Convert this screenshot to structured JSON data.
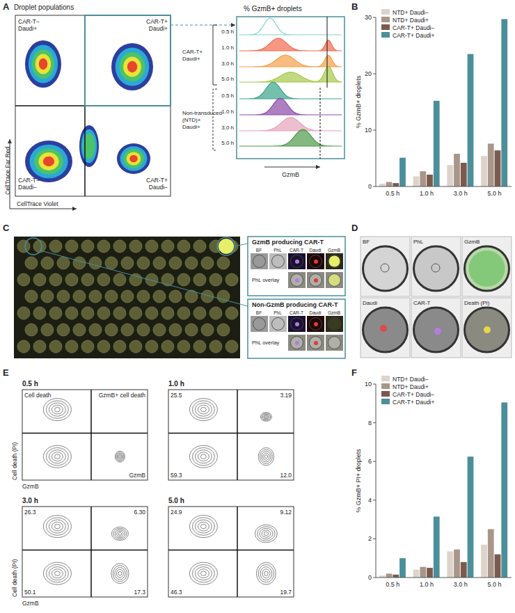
{
  "panel_labels": [
    "A",
    "B",
    "C",
    "D",
    "E",
    "F"
  ],
  "panel_a": {
    "title": "Droplet populations",
    "quadrants": [
      "CAR-T− Daudi+",
      "CAR-T+ Daudi+",
      "CAR-T− Daudi−",
      "CAR-T+ Daudi−"
    ],
    "x_label": "CellTrace Violet",
    "y_label": "CellTrace Far Red",
    "histogram_title": "% GzmB+ droplets",
    "histogram_x_label": "GzmB",
    "groups": [
      {
        "label_lines": [
          "CAR-T+",
          "Daudi+"
        ],
        "times": [
          "0.5 h",
          "1.0 h",
          "3.0 h",
          "5.0 h"
        ]
      },
      {
        "label_lines": [
          "Non-transduced",
          "(NTD)+",
          "Daudi+"
        ],
        "times": [
          "0.5 h",
          "1.0 h",
          "3.0 h",
          "5.0 h"
        ]
      }
    ]
  },
  "chart_data": [
    {
      "type": "bar",
      "y_label": "% GzmB+ droplets",
      "categories": [
        "0.5 h",
        "1.0 h",
        "3.0 h",
        "5.0 h"
      ],
      "series": [
        {
          "name": "NTD+ Daudi−",
          "color": "#ddd3cb",
          "values": [
            0.5,
            1.8,
            3.8,
            5.4
          ]
        },
        {
          "name": "NTD+ Daudi+",
          "color": "#a8968a",
          "values": [
            0.8,
            2.7,
            5.8,
            7.6
          ]
        },
        {
          "name": "CAR-T+ Daudi−",
          "color": "#7b5a4d",
          "values": [
            0.6,
            2.1,
            4.2,
            6.4
          ]
        },
        {
          "name": "CAR-T+ Daudi+",
          "color": "#4b8f9a",
          "values": [
            5.1,
            15.2,
            23.5,
            29.7
          ]
        }
      ],
      "ylim": [
        0,
        30
      ],
      "yticks": [
        0,
        10,
        20,
        30
      ],
      "legend": "top-left"
    },
    {
      "type": "bar",
      "y_label": "% GzmB+ PI+ droplets",
      "categories": [
        "0.5 h",
        "1.0 h",
        "3.0 h",
        "5.0 h"
      ],
      "series": [
        {
          "name": "NTD+ Daudi−",
          "color": "#ddd3cb",
          "values": [
            0.1,
            0.4,
            1.35,
            1.7
          ]
        },
        {
          "name": "NTD+ Daudi+",
          "color": "#a8968a",
          "values": [
            0.2,
            0.55,
            1.45,
            2.5
          ]
        },
        {
          "name": "CAR-T+ Daudi−",
          "color": "#7b5a4d",
          "values": [
            0.15,
            0.5,
            0.8,
            1.2
          ]
        },
        {
          "name": "CAR-T+ Daudi+",
          "color": "#4b8f9a",
          "values": [
            1.0,
            3.15,
            6.25,
            9.05
          ]
        }
      ],
      "ylim": [
        0,
        10
      ],
      "yticks": [
        0,
        2,
        4,
        6,
        8,
        10
      ],
      "legend": "top-left"
    }
  ],
  "panel_c": {
    "boxes": [
      {
        "title": "GzmB producing CAR-T",
        "channels": [
          "BF",
          "PhL",
          "CAR-T",
          "Daudi",
          "GzmB"
        ],
        "overlay": "PhL overlay"
      },
      {
        "title": "Non-GzmB producing CAR-T",
        "channels": [
          "BF",
          "PhL",
          "CAR-T",
          "Daudi",
          "GzmB"
        ],
        "overlay": "PhL overlay"
      }
    ]
  },
  "panel_d": {
    "channels": [
      "BF",
      "PhL",
      "GzmB",
      "Daudi",
      "CAR-T",
      "Death (PI)"
    ]
  },
  "panel_e": {
    "y_label": "Cell death (PI)",
    "x_label": "GzmB",
    "plots": [
      {
        "time": "0.5 h",
        "quadrants": {
          "upper_left": "Cell death",
          "upper_right": "GzmB+ cell death",
          "lower_right": "GzmB"
        }
      },
      {
        "time": "1.0 h",
        "quadrants": {
          "upper_left": "25.5",
          "upper_right": "3.19",
          "lower_left": "59.3",
          "lower_right": "12.0"
        }
      },
      {
        "time": "3.0 h",
        "quadrants": {
          "upper_left": "26.3",
          "upper_right": "6.30",
          "lower_left": "50.1",
          "lower_right": "17.3"
        }
      },
      {
        "time": "5.0 h",
        "quadrants": {
          "upper_left": "24.9",
          "upper_right": "9.12",
          "lower_left": "46.3",
          "lower_right": "19.7"
        }
      }
    ]
  }
}
